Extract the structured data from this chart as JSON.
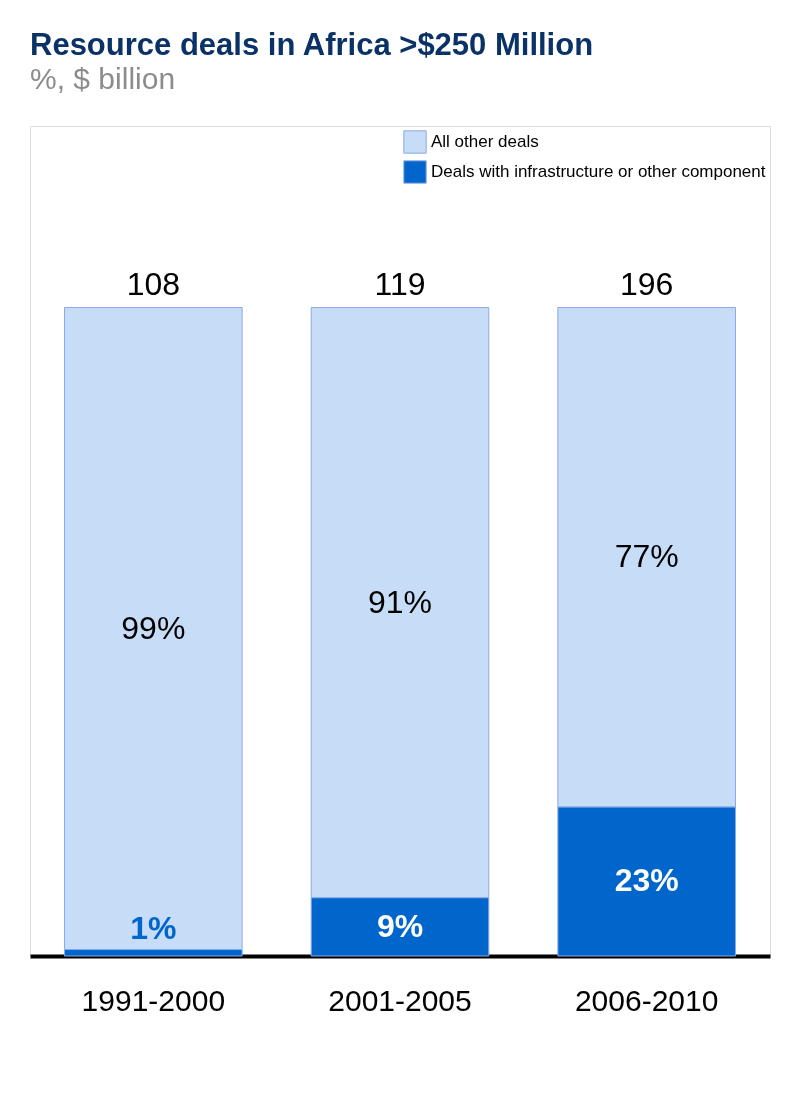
{
  "chart_data": {
    "type": "bar",
    "title": "Resource deals in Africa >$250 Million",
    "subtitle": "%, $ billion",
    "categories": [
      "1991-2000",
      "2001-2005",
      "2006-2010"
    ],
    "stacked": true,
    "legend": "top right",
    "grid": false,
    "series": [
      {
        "name": "Deals with infrastructure or other component",
        "color": "#0066cc",
        "values": [
          1,
          9,
          23
        ],
        "value_labels": [
          "1%",
          "9%",
          "23%"
        ]
      },
      {
        "name": "All other deals",
        "color": "#c6dcf7",
        "values": [
          99,
          91,
          77
        ],
        "value_labels": [
          "99%",
          "91%",
          "77%"
        ]
      }
    ],
    "annotations": [
      {
        "text": "108",
        "x": "1991-2000",
        "y": 100
      },
      {
        "text": "119",
        "x": "2001-2005",
        "y": 100
      },
      {
        "text": "196",
        "x": "2006-2010",
        "y": 100
      }
    ]
  }
}
